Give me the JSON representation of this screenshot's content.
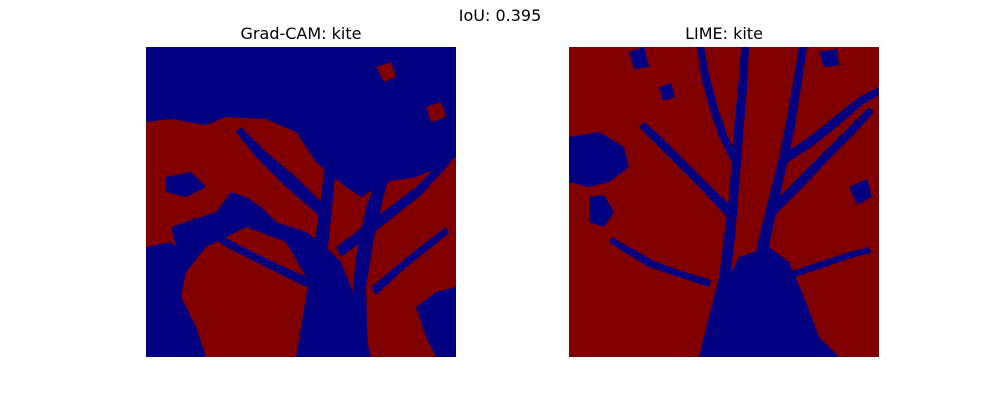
{
  "figure": {
    "suptitle": "IoU: 0.395"
  },
  "panels": [
    {
      "title": "Grad-CAM: kite"
    },
    {
      "title": "LIME: kite"
    }
  ],
  "colors": {
    "foreground_mask": "#800000",
    "background_mask": "#000080",
    "page_background": "#ffffff"
  }
}
